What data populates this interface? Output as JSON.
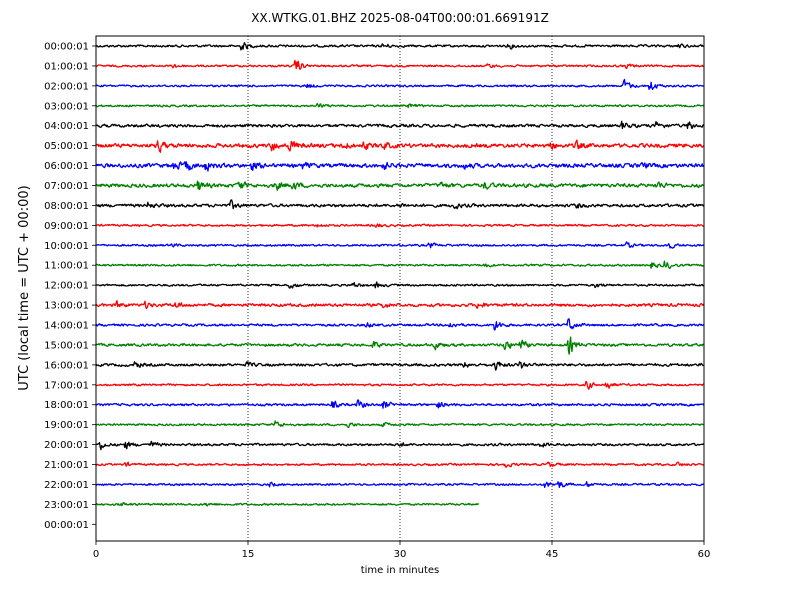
{
  "chart_data": {
    "type": "line",
    "title": "XX.WTKG.01.BHZ 2025-08-04T00:00:01.669191Z",
    "xlabel": "time in minutes",
    "ylabel": "UTC (local time = UTC + 00:00)",
    "xlim": [
      0,
      60
    ],
    "x_ticks": [
      0,
      15,
      30,
      45,
      60
    ],
    "x_grid": "dotted vertical lines at 15, 30, 45",
    "row_labels": [
      "00:00:01",
      "01:00:01",
      "02:00:01",
      "03:00:01",
      "04:00:01",
      "05:00:01",
      "06:00:01",
      "07:00:01",
      "08:00:01",
      "09:00:01",
      "10:00:01",
      "11:00:01",
      "12:00:01",
      "13:00:01",
      "14:00:01",
      "15:00:01",
      "16:00:01",
      "17:00:01",
      "18:00:01",
      "19:00:01",
      "20:00:01",
      "21:00:01",
      "22:00:01",
      "23:00:01",
      "00:00:01"
    ],
    "color_cycle": [
      "#000000",
      "#ff0000",
      "#0000ff",
      "#008000"
    ],
    "traces": [
      {
        "hour": 0,
        "end_min": 60,
        "noise": 0.35,
        "events": [
          [
            14.5,
            1.2
          ],
          [
            28.5,
            0.6
          ],
          [
            40.8,
            0.7
          ],
          [
            57.5,
            0.6
          ]
        ]
      },
      {
        "hour": 1,
        "end_min": 60,
        "noise": 0.3,
        "events": [
          [
            7.8,
            0.6
          ],
          [
            19.8,
            2.2
          ],
          [
            38.8,
            0.5
          ],
          [
            52.5,
            0.5
          ]
        ]
      },
      {
        "hour": 2,
        "end_min": 60,
        "noise": 0.3,
        "events": [
          [
            21.0,
            0.6
          ],
          [
            52.2,
            1.8
          ],
          [
            54.8,
            1.6
          ]
        ]
      },
      {
        "hour": 3,
        "end_min": 60,
        "noise": 0.3,
        "events": [
          [
            22.0,
            0.6
          ],
          [
            31.0,
            0.5
          ]
        ]
      },
      {
        "hour": 4,
        "end_min": 60,
        "noise": 0.45,
        "events": [
          [
            52.0,
            1.2
          ],
          [
            55.5,
            1.0
          ],
          [
            58.5,
            1.3
          ]
        ]
      },
      {
        "hour": 5,
        "end_min": 60,
        "noise": 0.6,
        "events": [
          [
            6.3,
            1.5
          ],
          [
            17.5,
            1.2
          ],
          [
            19.2,
            1.5
          ],
          [
            24.5,
            1.0
          ],
          [
            26.5,
            1.0
          ],
          [
            28.5,
            0.8
          ],
          [
            44.8,
            1.2
          ],
          [
            47.5,
            1.0
          ]
        ]
      },
      {
        "hour": 6,
        "end_min": 60,
        "noise": 0.6,
        "events": [
          [
            7.8,
            1.3
          ],
          [
            9.0,
            1.3
          ],
          [
            11.0,
            1.2
          ],
          [
            15.5,
            1.1
          ],
          [
            20.5,
            0.8
          ],
          [
            28.5,
            0.9
          ],
          [
            36.5,
            0.7
          ],
          [
            54.0,
            0.7
          ]
        ]
      },
      {
        "hour": 7,
        "end_min": 60,
        "noise": 0.55,
        "events": [
          [
            10.2,
            1.4
          ],
          [
            14.2,
            1.4
          ],
          [
            17.8,
            1.2
          ],
          [
            19.5,
            1.0
          ],
          [
            34.0,
            0.9
          ],
          [
            38.5,
            0.9
          ],
          [
            55.5,
            0.9
          ]
        ]
      },
      {
        "hour": 8,
        "end_min": 60,
        "noise": 0.45,
        "events": [
          [
            5.3,
            0.9
          ],
          [
            13.5,
            1.1
          ],
          [
            30.0,
            0.6
          ],
          [
            35.5,
            0.8
          ],
          [
            47.5,
            0.6
          ]
        ]
      },
      {
        "hour": 9,
        "end_min": 60,
        "noise": 0.3,
        "events": [
          [
            22.0,
            0.5
          ],
          [
            27.8,
            0.5
          ]
        ]
      },
      {
        "hour": 10,
        "end_min": 60,
        "noise": 0.3,
        "events": [
          [
            7.5,
            0.5
          ],
          [
            33.0,
            0.8
          ],
          [
            52.5,
            0.7
          ],
          [
            56.5,
            1.1
          ]
        ]
      },
      {
        "hour": 11,
        "end_min": 60,
        "noise": 0.3,
        "events": [
          [
            38.5,
            0.5
          ],
          [
            55.0,
            0.9
          ],
          [
            56.3,
            1.2
          ]
        ]
      },
      {
        "hour": 12,
        "end_min": 60,
        "noise": 0.3,
        "events": [
          [
            19.3,
            1.0
          ],
          [
            25.5,
            0.8
          ],
          [
            27.8,
            0.8
          ],
          [
            49.5,
            0.6
          ]
        ]
      },
      {
        "hour": 13,
        "end_min": 60,
        "noise": 0.45,
        "events": [
          [
            2.2,
            0.8
          ],
          [
            5.0,
            0.8
          ],
          [
            8.0,
            0.8
          ],
          [
            28.5,
            0.7
          ],
          [
            37.8,
            0.9
          ]
        ]
      },
      {
        "hour": 14,
        "end_min": 60,
        "noise": 0.35,
        "events": [
          [
            26.8,
            0.7
          ],
          [
            35.0,
            0.8
          ],
          [
            39.5,
            1.6
          ],
          [
            46.8,
            1.8
          ]
        ]
      },
      {
        "hour": 15,
        "end_min": 60,
        "noise": 0.4,
        "events": [
          [
            27.5,
            0.9
          ],
          [
            33.5,
            1.2
          ],
          [
            40.5,
            1.5
          ],
          [
            42.0,
            1.3
          ],
          [
            46.8,
            2.5
          ]
        ]
      },
      {
        "hour": 16,
        "end_min": 60,
        "noise": 0.4,
        "events": [
          [
            4.0,
            0.8
          ],
          [
            15.0,
            0.6
          ],
          [
            36.5,
            0.7
          ],
          [
            39.5,
            1.4
          ],
          [
            42.0,
            1.1
          ]
        ]
      },
      {
        "hour": 17,
        "end_min": 60,
        "noise": 0.3,
        "events": [
          [
            48.5,
            1.3
          ],
          [
            50.5,
            1.2
          ]
        ]
      },
      {
        "hour": 18,
        "end_min": 60,
        "noise": 0.35,
        "events": [
          [
            23.5,
            1.0
          ],
          [
            26.0,
            1.2
          ],
          [
            28.5,
            1.2
          ],
          [
            33.8,
            1.0
          ]
        ]
      },
      {
        "hour": 19,
        "end_min": 60,
        "noise": 0.3,
        "events": [
          [
            17.8,
            1.2
          ],
          [
            25.0,
            0.6
          ],
          [
            28.5,
            0.5
          ]
        ]
      },
      {
        "hour": 20,
        "end_min": 60,
        "noise": 0.35,
        "events": [
          [
            0.5,
            1.3
          ],
          [
            3.0,
            1.1
          ],
          [
            5.5,
            0.9
          ],
          [
            30.0,
            0.6
          ],
          [
            44.0,
            0.6
          ]
        ]
      },
      {
        "hour": 21,
        "end_min": 60,
        "noise": 0.3,
        "events": [
          [
            3.0,
            0.5
          ],
          [
            40.5,
            0.8
          ],
          [
            44.8,
            0.7
          ],
          [
            57.5,
            0.5
          ]
        ]
      },
      {
        "hour": 22,
        "end_min": 60,
        "noise": 0.3,
        "events": [
          [
            17.3,
            0.6
          ],
          [
            44.5,
            0.9
          ],
          [
            45.8,
            1.0
          ],
          [
            48.5,
            0.8
          ]
        ]
      },
      {
        "hour": 23,
        "end_min": 37.8,
        "noise": 0.3,
        "events": [
          [
            2.5,
            0.6
          ],
          [
            11.0,
            0.5
          ]
        ]
      }
    ]
  }
}
